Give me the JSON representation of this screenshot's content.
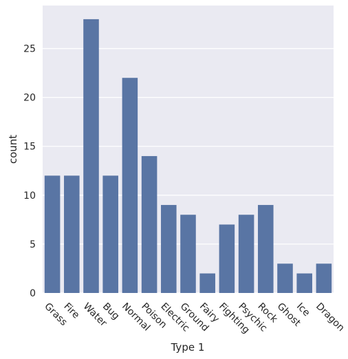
{
  "chart_data": {
    "type": "bar",
    "title": "",
    "xlabel": "Type 1",
    "ylabel": "count",
    "categories": [
      "Grass",
      "Fire",
      "Water",
      "Bug",
      "Normal",
      "Poison",
      "Electric",
      "Ground",
      "Fairy",
      "Fighting",
      "Psychic",
      "Rock",
      "Ghost",
      "Ice",
      "Dragon"
    ],
    "values": [
      12,
      12,
      28,
      12,
      22,
      14,
      9,
      8,
      2,
      7,
      8,
      9,
      3,
      2,
      3
    ],
    "ylim": [
      0,
      29.4
    ],
    "yticks": [
      0,
      5,
      10,
      15,
      20,
      25
    ],
    "grid": true,
    "legend": "none",
    "bar_color": "#5975a4",
    "background_color": "#eaeaf2",
    "grid_color": "#ffffff"
  }
}
